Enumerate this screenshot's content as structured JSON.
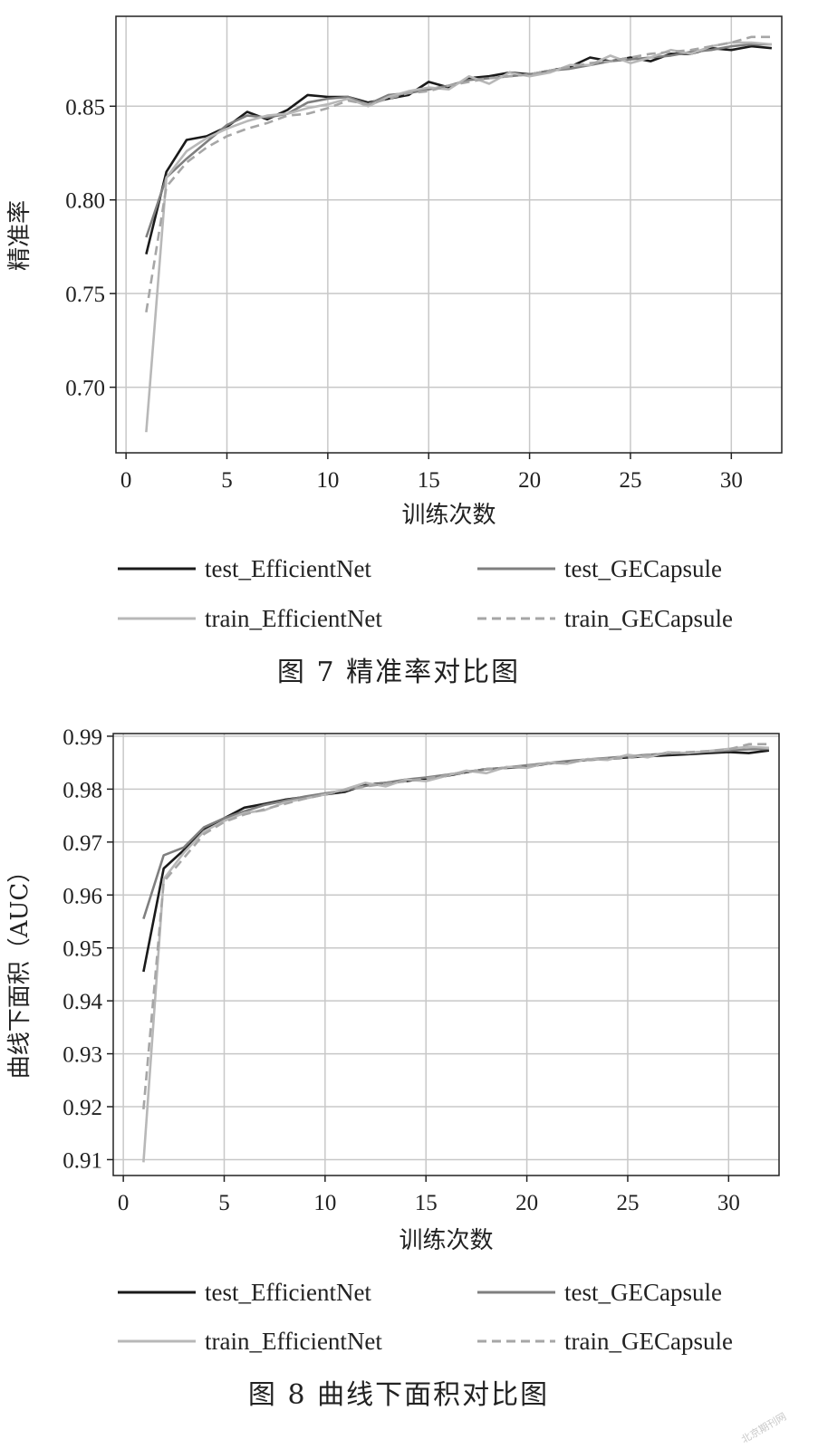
{
  "charts": [
    {
      "caption": "图 7   精准率对比图",
      "chart_data": {
        "type": "line",
        "xlabel": "训练次数",
        "ylabel": "精准率",
        "xlim": [
          -0.5,
          32.5
        ],
        "ylim": [
          0.665,
          0.898
        ],
        "xticks": [
          0,
          5,
          10,
          15,
          20,
          25,
          30
        ],
        "yticks": [
          0.7,
          0.75,
          0.8,
          0.85
        ],
        "ytick_labels": [
          "0.70",
          "0.75",
          "0.80",
          "0.85"
        ],
        "grid": true,
        "legend_position": "bottom",
        "x": [
          1,
          2,
          3,
          4,
          5,
          6,
          7,
          8,
          9,
          10,
          11,
          12,
          13,
          14,
          15,
          16,
          17,
          18,
          19,
          20,
          21,
          22,
          23,
          24,
          25,
          26,
          27,
          28,
          29,
          30,
          31,
          32
        ],
        "series": [
          {
            "name": "test_EfficientNet",
            "color": "#1a1a1a",
            "dash": "solid",
            "values": [
              0.771,
              0.815,
              0.832,
              0.834,
              0.839,
              0.847,
              0.843,
              0.848,
              0.856,
              0.855,
              0.855,
              0.852,
              0.854,
              0.856,
              0.863,
              0.86,
              0.865,
              0.866,
              0.868,
              0.867,
              0.869,
              0.871,
              0.876,
              0.874,
              0.876,
              0.874,
              0.878,
              0.878,
              0.881,
              0.88,
              0.882,
              0.881
            ]
          },
          {
            "name": "test_GECapsule",
            "color": "#7f7f7f",
            "dash": "solid",
            "values": [
              0.78,
              0.812,
              0.822,
              0.831,
              0.84,
              0.845,
              0.844,
              0.846,
              0.852,
              0.854,
              0.855,
              0.851,
              0.856,
              0.857,
              0.859,
              0.861,
              0.864,
              0.865,
              0.866,
              0.867,
              0.869,
              0.87,
              0.872,
              0.874,
              0.875,
              0.876,
              0.877,
              0.879,
              0.88,
              0.882,
              0.883,
              0.883
            ]
          },
          {
            "name": "train_EfficientNet",
            "color": "#b8b8b8",
            "dash": "solid",
            "values": [
              0.676,
              0.812,
              0.826,
              0.833,
              0.838,
              0.842,
              0.845,
              0.846,
              0.849,
              0.851,
              0.854,
              0.85,
              0.855,
              0.858,
              0.86,
              0.859,
              0.866,
              0.862,
              0.868,
              0.866,
              0.868,
              0.872,
              0.872,
              0.877,
              0.873,
              0.876,
              0.88,
              0.878,
              0.882,
              0.884,
              0.884,
              0.883
            ]
          },
          {
            "name": "train_GECapsule",
            "color": "#a6a6a6",
            "dash": "dashed",
            "values": [
              0.74,
              0.807,
              0.82,
              0.828,
              0.834,
              0.838,
              0.841,
              0.845,
              0.846,
              0.849,
              0.853,
              0.851,
              0.854,
              0.857,
              0.858,
              0.861,
              0.863,
              0.865,
              0.866,
              0.867,
              0.869,
              0.871,
              0.873,
              0.874,
              0.876,
              0.878,
              0.879,
              0.88,
              0.882,
              0.884,
              0.887,
              0.887
            ]
          }
        ]
      }
    },
    {
      "caption": "图 8   曲线下面积对比图",
      "chart_data": {
        "type": "line",
        "xlabel": "训练次数",
        "ylabel": "曲线下面积（AUC）",
        "xlim": [
          -0.5,
          32.5
        ],
        "ylim": [
          0.907,
          0.9905
        ],
        "xticks": [
          0,
          5,
          10,
          15,
          20,
          25,
          30
        ],
        "yticks": [
          0.91,
          0.92,
          0.93,
          0.94,
          0.95,
          0.96,
          0.97,
          0.98,
          0.99
        ],
        "ytick_labels": [
          "0.91",
          "0.92",
          "0.93",
          "0.94",
          "0.95",
          "0.96",
          "0.97",
          "0.98",
          "0.99"
        ],
        "grid": true,
        "legend_position": "bottom",
        "x": [
          1,
          2,
          3,
          4,
          5,
          6,
          7,
          8,
          9,
          10,
          11,
          12,
          13,
          14,
          15,
          16,
          17,
          18,
          19,
          20,
          21,
          22,
          23,
          24,
          25,
          26,
          27,
          28,
          29,
          30,
          31,
          32
        ],
        "series": [
          {
            "name": "test_EfficientNet",
            "color": "#1a1a1a",
            "dash": "solid",
            "values": [
              0.9455,
              0.965,
              0.9685,
              0.9725,
              0.9745,
              0.9765,
              0.9772,
              0.978,
              0.9785,
              0.979,
              0.9795,
              0.9808,
              0.9812,
              0.9815,
              0.982,
              0.9825,
              0.9832,
              0.9838,
              0.984,
              0.9842,
              0.9848,
              0.9852,
              0.9855,
              0.9857,
              0.986,
              0.9862,
              0.9864,
              0.9866,
              0.9868,
              0.987,
              0.9868,
              0.9873
            ]
          },
          {
            "name": "test_GECapsule",
            "color": "#7f7f7f",
            "dash": "solid",
            "values": [
              0.9555,
              0.9675,
              0.969,
              0.9728,
              0.9745,
              0.9758,
              0.977,
              0.9778,
              0.9786,
              0.9792,
              0.9798,
              0.9806,
              0.9812,
              0.9818,
              0.9822,
              0.9827,
              0.9833,
              0.9837,
              0.9841,
              0.9845,
              0.9849,
              0.9853,
              0.9856,
              0.9859,
              0.9862,
              0.9865,
              0.9867,
              0.9869,
              0.9871,
              0.9873,
              0.9875,
              0.9876
            ]
          },
          {
            "name": "train_EfficientNet",
            "color": "#b8b8b8",
            "dash": "solid",
            "values": [
              0.9095,
              0.963,
              0.968,
              0.972,
              0.974,
              0.9755,
              0.976,
              0.9775,
              0.9782,
              0.979,
              0.98,
              0.9812,
              0.9805,
              0.9818,
              0.9815,
              0.9825,
              0.9835,
              0.983,
              0.9842,
              0.984,
              0.985,
              0.9848,
              0.9857,
              0.9855,
              0.9865,
              0.986,
              0.987,
              0.9868,
              0.9872,
              0.9876,
              0.988,
              0.9878
            ]
          },
          {
            "name": "train_GECapsule",
            "color": "#a6a6a6",
            "dash": "dashed",
            "values": [
              0.9195,
              0.9625,
              0.967,
              0.9715,
              0.9738,
              0.9752,
              0.9762,
              0.9772,
              0.9782,
              0.979,
              0.9798,
              0.9805,
              0.981,
              0.9815,
              0.982,
              0.9826,
              0.9832,
              0.9838,
              0.984,
              0.9844,
              0.9848,
              0.985,
              0.9855,
              0.9858,
              0.986,
              0.9864,
              0.9868,
              0.987,
              0.9872,
              0.9875,
              0.9885,
              0.9885
            ]
          }
        ]
      }
    }
  ],
  "watermark": "北京期刊网"
}
